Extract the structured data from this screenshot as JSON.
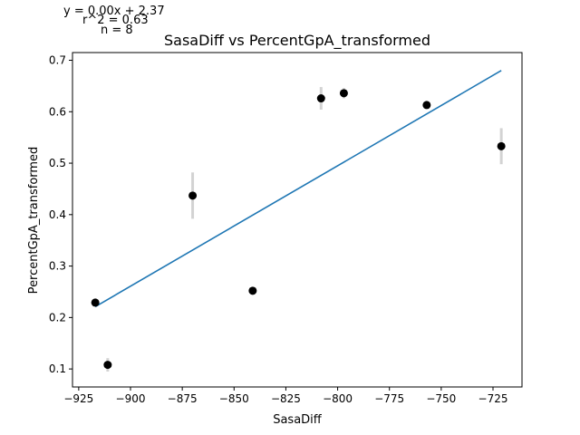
{
  "annotations": {
    "equation": "y = 0.00x + 2.37",
    "r2": "r^2 = 0.63",
    "n": "n = 8"
  },
  "chart_data": {
    "type": "scatter",
    "title": "SasaDiff vs PercentGpA_transformed",
    "xlabel": "SasaDiff",
    "ylabel": "PercentGpA_transformed",
    "xlim": [
      -928,
      -711
    ],
    "ylim": [
      0.065,
      0.715
    ],
    "x_ticks": [
      -925,
      -900,
      -875,
      -850,
      -825,
      -800,
      -775,
      -750,
      -725
    ],
    "x_tick_labels": [
      "−925",
      "−900",
      "−875",
      "−850",
      "−825",
      "−800",
      "−775",
      "−750",
      "−725"
    ],
    "y_ticks": [
      0.1,
      0.2,
      0.3,
      0.4,
      0.5,
      0.6,
      0.7
    ],
    "y_tick_labels": [
      "0.1",
      "0.2",
      "0.3",
      "0.4",
      "0.5",
      "0.6",
      "0.7"
    ],
    "grid": false,
    "colors": {
      "points": "#000000",
      "fit_line": "#1f77b4",
      "error_bars": "#d3d3d3"
    },
    "points": [
      {
        "x": -917,
        "y": 0.229,
        "err": 0.006
      },
      {
        "x": -911,
        "y": 0.108,
        "err": 0.013
      },
      {
        "x": -870,
        "y": 0.437,
        "err": 0.045
      },
      {
        "x": -841,
        "y": 0.252,
        "err": 0.007
      },
      {
        "x": -808,
        "y": 0.626,
        "err": 0.022
      },
      {
        "x": -797,
        "y": 0.636,
        "err": 0.01
      },
      {
        "x": -757,
        "y": 0.613,
        "err": 0.006
      },
      {
        "x": -721,
        "y": 0.533,
        "err": 0.035
      }
    ],
    "fit_line": {
      "x": [
        -917,
        -721
      ],
      "y": [
        0.221,
        0.68
      ]
    }
  }
}
